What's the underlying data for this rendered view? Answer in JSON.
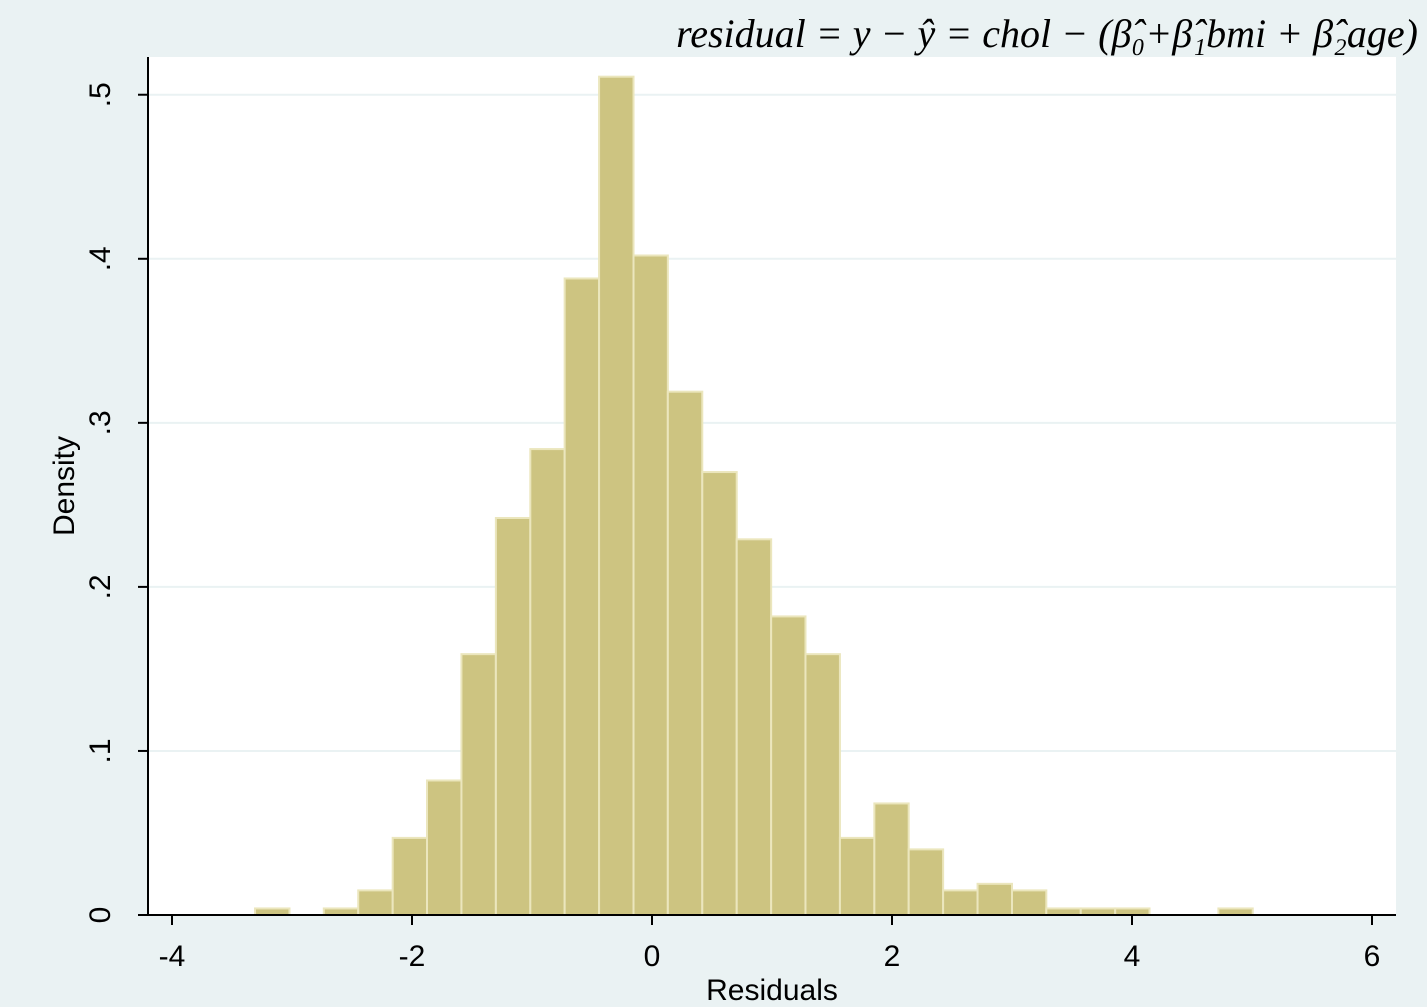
{
  "chart_data": {
    "type": "histogram",
    "title": "residual = y − ŷ = chol − (β̂₀+β̂₁bmi + β̂₂age)",
    "x_label": "Residuals",
    "y_label": "Density",
    "bins": [
      -3.308,
      -3.021,
      -2.735,
      -2.448,
      -2.161,
      -1.875,
      -1.588,
      -1.301,
      -1.014,
      -0.728,
      -0.441,
      -0.154,
      0.132,
      0.419,
      0.706,
      0.993,
      1.279,
      1.566,
      1.853,
      2.139,
      2.426,
      2.713,
      3.0,
      3.286,
      3.573,
      3.86,
      4.146,
      4.433,
      4.72,
      5.006
    ],
    "values": [
      0.004,
      0,
      0.004,
      0.015,
      0.047,
      0.082,
      0.159,
      0.242,
      0.284,
      0.388,
      0.511,
      0.402,
      0.319,
      0.27,
      0.229,
      0.182,
      0.159,
      0.047,
      0.068,
      0.04,
      0.015,
      0.019,
      0.015,
      0.004,
      0.004,
      0.004,
      0,
      0,
      0.004
    ],
    "color": "#cdc481",
    "xlim": [
      -4.2,
      6.2
    ],
    "ylim": [
      0,
      0.523
    ],
    "xticks": [
      -4,
      -2,
      0,
      2,
      4,
      6
    ],
    "yticks": [
      0,
      {
        "value": 0.1,
        "label": ".1"
      },
      {
        "value": 0.2,
        "label": ".2"
      },
      {
        "value": 0.3,
        "label": ".3"
      },
      {
        "value": 0.4,
        "label": ".4"
      },
      {
        "value": 0.5,
        "label": ".5"
      }
    ],
    "grid": true
  }
}
